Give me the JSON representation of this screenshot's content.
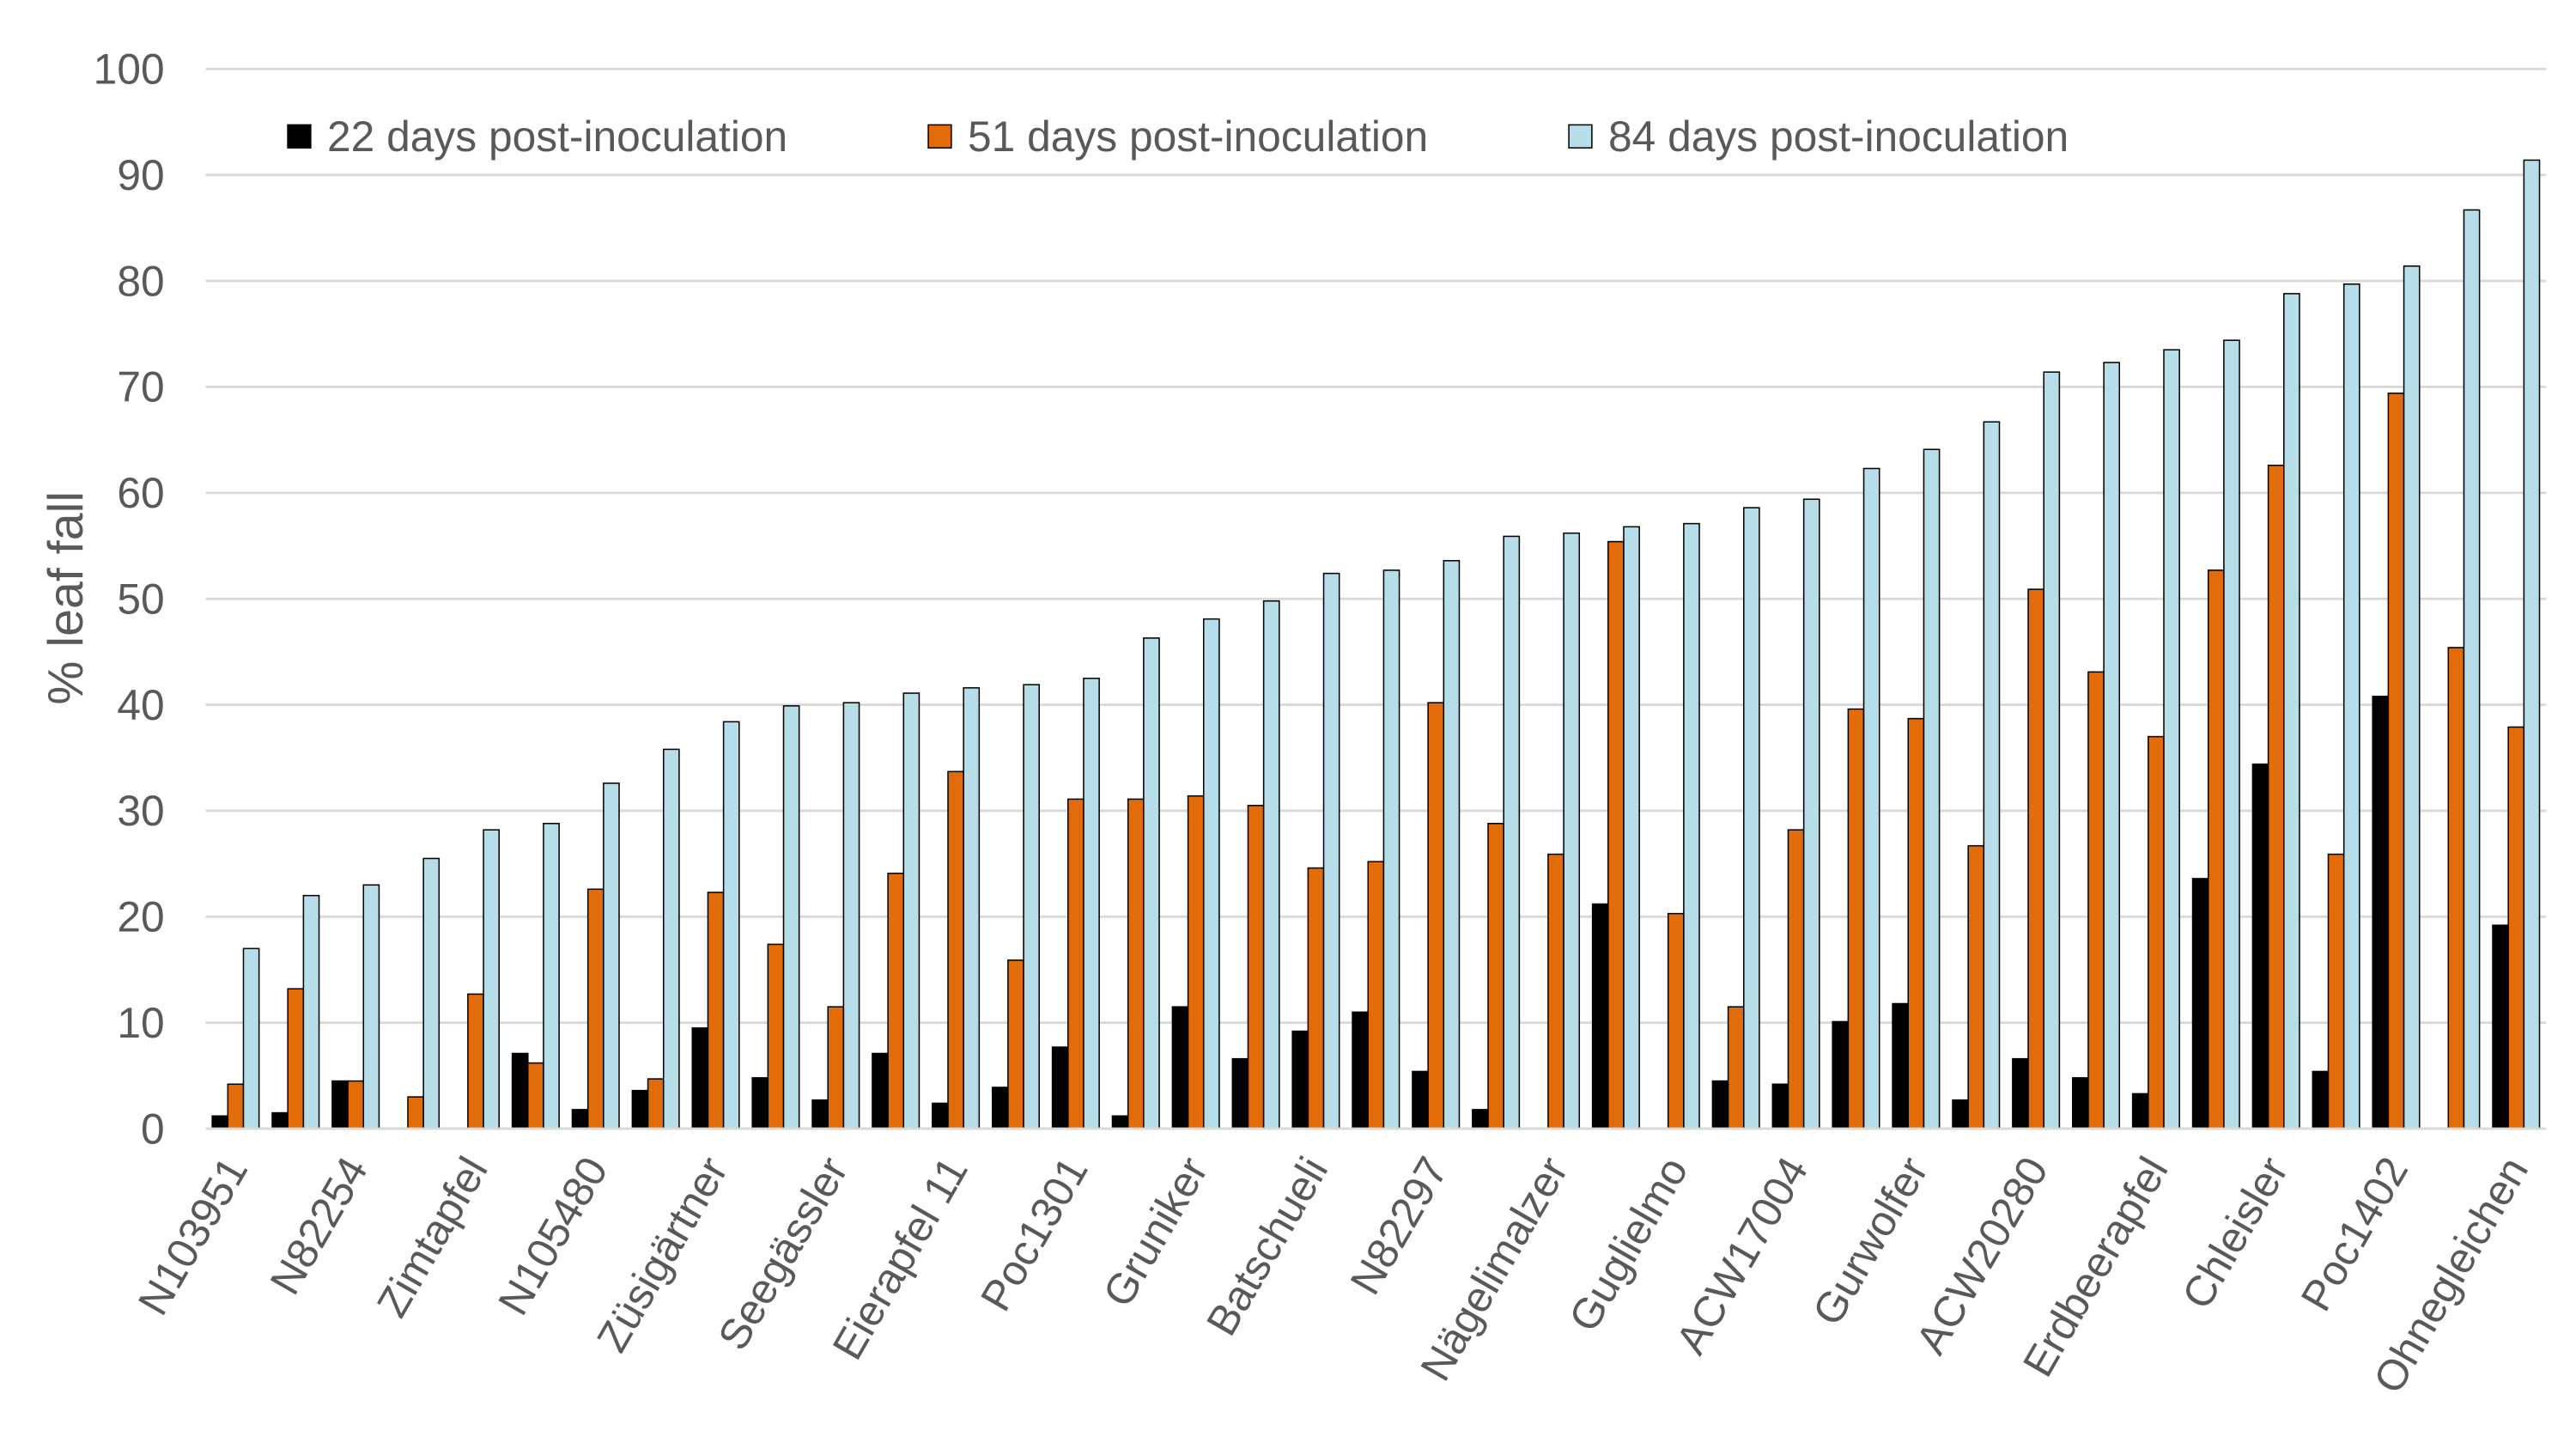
{
  "chart_data": {
    "type": "bar",
    "y_label": "% leaf fall",
    "categories": [
      "N103951",
      null,
      "N82254",
      null,
      "Zimtapfel",
      null,
      "N105480",
      null,
      "Züsigärtner",
      null,
      "Seegässler",
      null,
      "Eierapfel 11",
      null,
      "Poc1301",
      null,
      "Gruniker",
      null,
      "Batschueli",
      null,
      "N82297",
      null,
      "Nägelimalzer",
      null,
      "Guglielmo",
      null,
      "ACW17004",
      null,
      "Gurwolfer",
      null,
      "ACW20280",
      null,
      "Erdbeerapfel",
      null,
      "Chleisler",
      null,
      "Poc1402",
      null,
      "Ohnegleichen"
    ],
    "series": [
      {
        "name": "22 days post-inoculation",
        "color": "#000000",
        "values": [
          1.2,
          1.5,
          4.5,
          0,
          0,
          7.1,
          1.8,
          3.6,
          9.5,
          4.8,
          2.7,
          7.1,
          2.4,
          3.9,
          7.7,
          1.2,
          11.5,
          6.6,
          9.2,
          11,
          5.4,
          1.8,
          0,
          21.2,
          0,
          4.5,
          4.2,
          10.1,
          11.8,
          2.7,
          6.6,
          4.8,
          3.3,
          23.6,
          34.4,
          5.4,
          40.8,
          0,
          19.2
        ]
      },
      {
        "name": "51 days post-inoculation",
        "color": "#e36c0a",
        "values": [
          4.2,
          13.2,
          4.5,
          3,
          12.7,
          6.2,
          22.6,
          4.7,
          22.3,
          17.4,
          11.5,
          24.1,
          33.7,
          15.9,
          31.1,
          31.1,
          31.4,
          30.5,
          24.6,
          25.2,
          40.2,
          28.8,
          25.9,
          55.4,
          20.3,
          11.5,
          28.2,
          39.6,
          38.7,
          26.7,
          50.9,
          43.1,
          37,
          52.7,
          62.6,
          25.9,
          69.4,
          45.4,
          37.9
        ]
      },
      {
        "name": "84 days post-inoculation",
        "color": "#b7dee8",
        "values": [
          17,
          22,
          23,
          25.5,
          28.2,
          28.8,
          32.6,
          35.8,
          38.4,
          39.9,
          40.2,
          41.1,
          41.6,
          41.9,
          42.5,
          46.3,
          48.1,
          49.8,
          52.4,
          52.7,
          53.6,
          55.9,
          56.2,
          56.8,
          57.1,
          58.6,
          59.4,
          62.3,
          64.1,
          66.7,
          71.4,
          72.3,
          73.5,
          74.4,
          78.8,
          79.7,
          81.4,
          86.7,
          91.4
        ]
      }
    ],
    "ylim": [
      0,
      100
    ],
    "yticks": [
      0,
      10,
      20,
      30,
      40,
      50,
      60,
      70,
      80,
      90,
      100
    ],
    "grid": true
  }
}
